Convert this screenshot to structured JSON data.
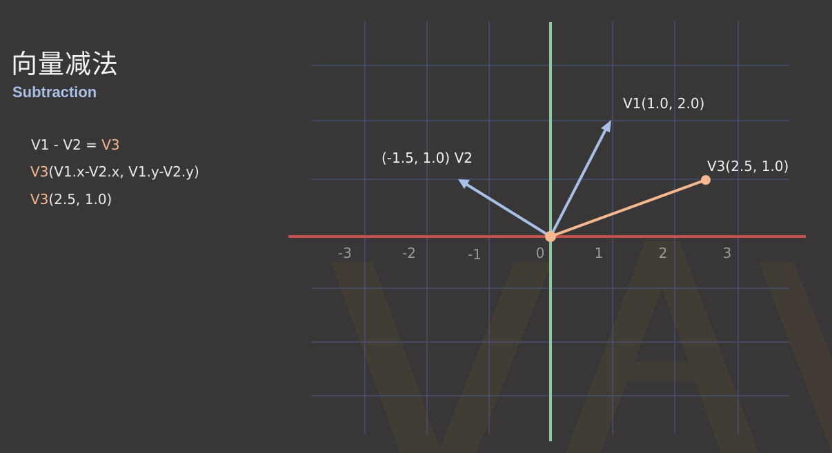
{
  "header": {
    "title": "向量减法",
    "subtitle": "Subtraction"
  },
  "formulas": {
    "line1": {
      "a": "V1 - V2 = ",
      "b": "V3"
    },
    "line2": {
      "a": "V3",
      "b": "(V1.x-V2.x, V1.y-V2.y)"
    },
    "line3": {
      "a": "V3",
      "b": "(2.5, 1.0)"
    }
  },
  "colors": {
    "background": "#383636",
    "grid": "#4a5a8a",
    "x_axis": "#c8504a",
    "y_axis": "#8cc8a0",
    "v1_v2": "#a9c0e6",
    "v3": "#f5b890",
    "watermark": "#4a4233"
  },
  "diagram": {
    "x_ticks": [
      "-3",
      "-2",
      "-1",
      "0",
      "1",
      "2",
      "3"
    ],
    "vectors": [
      {
        "name": "V1",
        "x": 1.0,
        "y": 2.0,
        "label": "V1(1.0, 2.0)"
      },
      {
        "name": "V2",
        "x": -1.5,
        "y": 1.0,
        "label": "(-1.5, 1.0) V2"
      },
      {
        "name": "V3",
        "x": 2.5,
        "y": 1.0,
        "label": "V3(2.5, 1.0)"
      }
    ],
    "watermark_text": "VAN"
  }
}
